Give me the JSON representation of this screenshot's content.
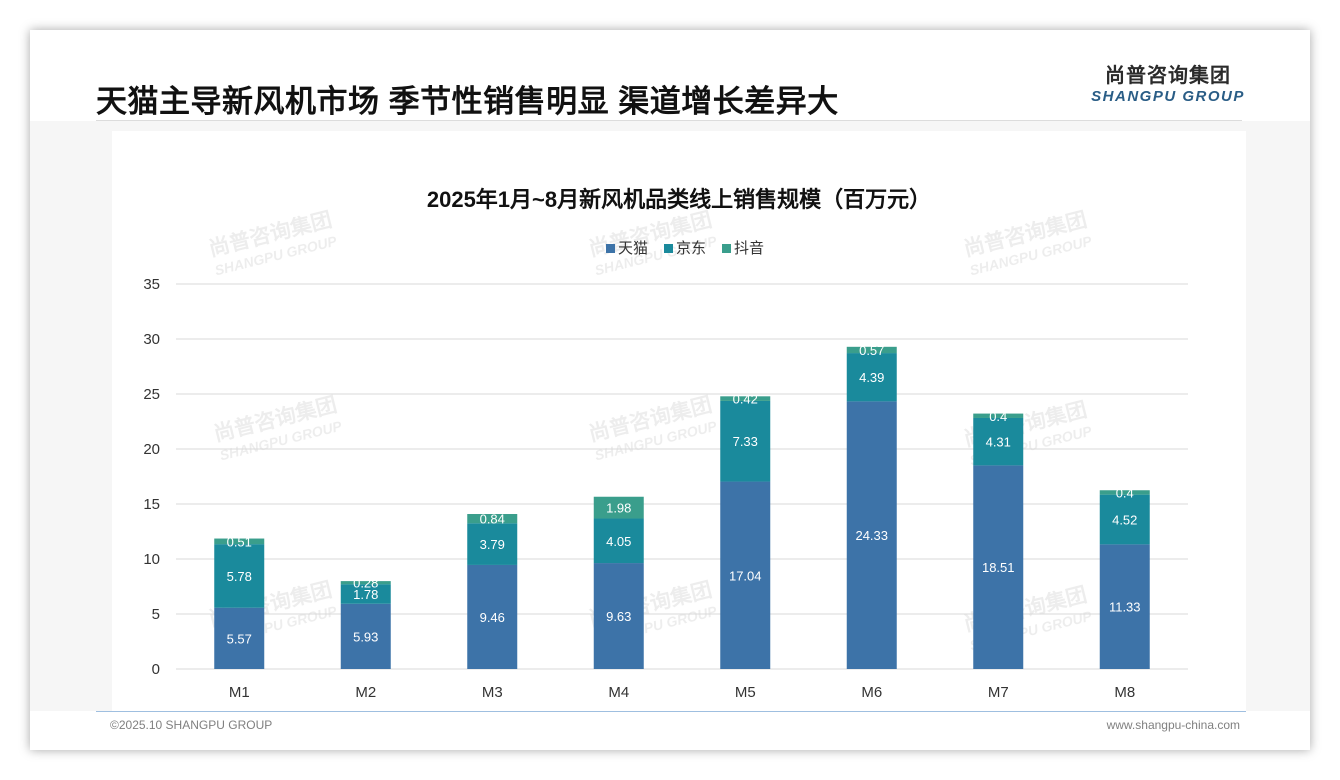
{
  "header": {
    "title": "天猫主导新风机市场 季节性销售明显 渠道增长差异大",
    "logo_cn": "尚普咨询集团",
    "logo_en": "SHANGPU GROUP"
  },
  "footer": {
    "copyright": "©2025.10 SHANGPU GROUP",
    "website": "www.shangpu-china.com"
  },
  "watermark": {
    "cn": "尚普咨询集团",
    "en": "SHANGPU GROUP"
  },
  "colors": {
    "tmall": "#3d73a8",
    "jd": "#1a8a9c",
    "douyin": "#3a9e8c",
    "grid": "#d9d9d9",
    "axis_text": "#333333"
  },
  "chart_data": {
    "type": "bar",
    "stacked": true,
    "title": "2025年1月~8月新风机品类线上销售规模（百万元）",
    "xlabel": "",
    "ylabel": "",
    "ylim": [
      0,
      35
    ],
    "yticks": [
      0,
      5,
      10,
      15,
      20,
      25,
      30,
      35
    ],
    "legend_position": "top-center",
    "grid": true,
    "categories": [
      "M1",
      "M2",
      "M3",
      "M4",
      "M5",
      "M6",
      "M7",
      "M8"
    ],
    "series": [
      {
        "name": "天猫",
        "values": [
          5.57,
          5.93,
          9.46,
          9.63,
          17.04,
          24.33,
          18.51,
          11.33
        ]
      },
      {
        "name": "京东",
        "values": [
          5.78,
          1.78,
          3.79,
          4.05,
          7.33,
          4.39,
          4.31,
          4.52
        ]
      },
      {
        "name": "抖音",
        "values": [
          0.51,
          0.28,
          0.84,
          1.98,
          0.42,
          0.57,
          0.4,
          0.4
        ]
      }
    ]
  }
}
